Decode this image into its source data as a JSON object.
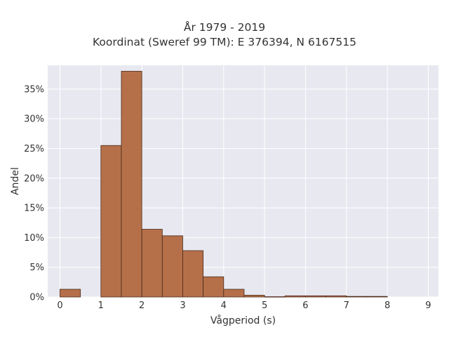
{
  "chart_data": {
    "type": "bar",
    "title": "År 1979 - 2019",
    "subtitle": "Koordinat (Sweref 99 TM): E 376394, N 6167515",
    "xlabel": "Vågperiod (s)",
    "ylabel": "Andel",
    "xlim": [
      -0.3,
      9.25
    ],
    "ylim": [
      0,
      0.39
    ],
    "xticks": [
      0,
      1,
      2,
      3,
      4,
      5,
      6,
      7,
      8,
      9
    ],
    "xtick_labels": [
      "0",
      "1",
      "2",
      "3",
      "4",
      "5",
      "6",
      "7",
      "8",
      "9"
    ],
    "yticks": [
      0,
      0.05,
      0.1,
      0.15,
      0.2,
      0.25,
      0.3,
      0.35
    ],
    "ytick_labels": [
      "0%",
      "5%",
      "10%",
      "15%",
      "20%",
      "25%",
      "30%",
      "35%"
    ],
    "grid": true,
    "bin_width": 0.5,
    "bins": [
      {
        "start": 0.0,
        "value": 0.013
      },
      {
        "start": 0.5,
        "value": 0.0
      },
      {
        "start": 1.0,
        "value": 0.255
      },
      {
        "start": 1.5,
        "value": 0.38
      },
      {
        "start": 2.0,
        "value": 0.114
      },
      {
        "start": 2.5,
        "value": 0.103
      },
      {
        "start": 3.0,
        "value": 0.078
      },
      {
        "start": 3.5,
        "value": 0.034
      },
      {
        "start": 4.0,
        "value": 0.013
      },
      {
        "start": 4.5,
        "value": 0.003
      },
      {
        "start": 5.0,
        "value": 0.0005
      },
      {
        "start": 5.5,
        "value": 0.002
      },
      {
        "start": 6.0,
        "value": 0.002
      },
      {
        "start": 6.5,
        "value": 0.002
      },
      {
        "start": 7.0,
        "value": 0.001
      },
      {
        "start": 7.5,
        "value": 0.001
      },
      {
        "start": 8.0,
        "value": 0.0
      },
      {
        "start": 8.5,
        "value": 0.0
      }
    ],
    "colors": {
      "bar_fill": "#b5704a",
      "bar_stroke": "#4a2a18",
      "plot_bg": "#e8e8f0",
      "grid": "#ffffff"
    }
  }
}
